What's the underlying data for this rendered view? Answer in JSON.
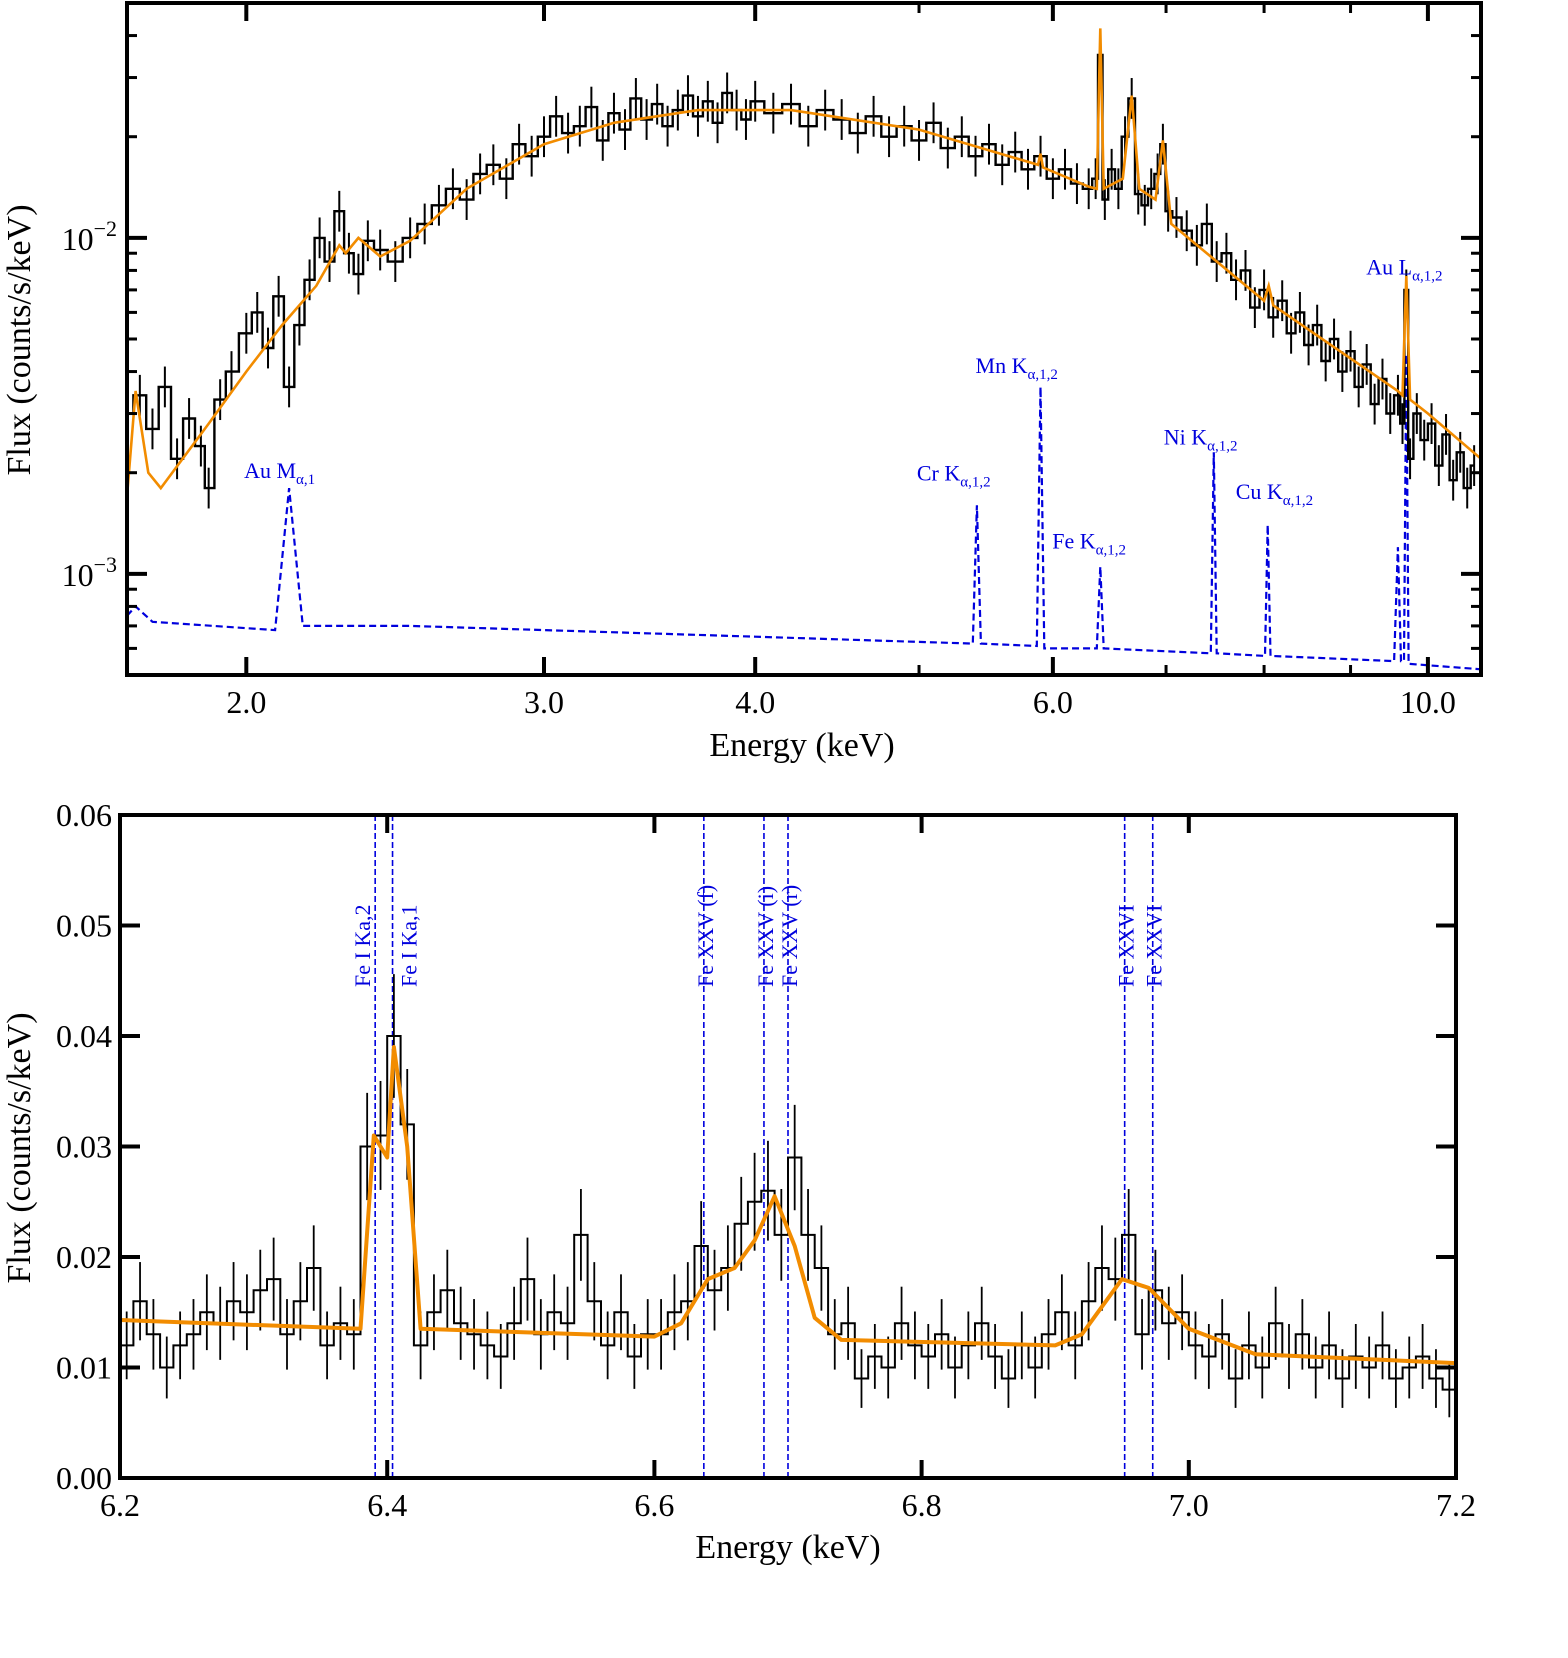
{
  "chart_data": [
    {
      "type": "line",
      "panel": "top",
      "xscale": "log",
      "yscale": "log",
      "xlabel": "Energy (keV)",
      "ylabel": "Flux (counts/s/keV)",
      "xlim": [
        1.7,
        10.75
      ],
      "ylim": [
        0.0005,
        0.05
      ],
      "xticks": [
        2.0,
        3.0,
        4.0,
        6.0,
        10.0
      ],
      "xtick_labels": [
        "2.0",
        "3.0",
        "4.0",
        "6.0",
        "10.0"
      ],
      "yticks": [
        0.001,
        0.01
      ],
      "ytick_labels": [
        {
          "base": "10",
          "exp": "−3"
        },
        {
          "base": "10",
          "exp": "−2"
        }
      ],
      "colors": {
        "data": "#000000",
        "model": "#f28c00",
        "background": "#0000dd"
      },
      "series": [
        {
          "name": "data",
          "style": "step",
          "x": [
            1.7,
            1.73,
            1.76,
            1.79,
            1.82,
            1.85,
            1.88,
            1.9,
            1.93,
            1.96,
            2.0,
            2.03,
            2.06,
            2.09,
            2.12,
            2.15,
            2.18,
            2.21,
            2.24,
            2.27,
            2.3,
            2.33,
            2.36,
            2.4,
            2.45,
            2.5,
            2.55,
            2.6,
            2.65,
            2.7,
            2.75,
            2.8,
            2.85,
            2.9,
            2.95,
            3.0,
            3.05,
            3.1,
            3.15,
            3.2,
            3.25,
            3.3,
            3.35,
            3.4,
            3.45,
            3.5,
            3.55,
            3.6,
            3.65,
            3.7,
            3.75,
            3.8,
            3.85,
            3.9,
            3.95,
            4.0,
            4.1,
            4.2,
            4.3,
            4.4,
            4.5,
            4.6,
            4.7,
            4.8,
            4.9,
            5.0,
            5.1,
            5.2,
            5.3,
            5.4,
            5.5,
            5.6,
            5.7,
            5.8,
            5.9,
            6.0,
            6.1,
            6.2,
            6.3,
            6.36,
            6.4,
            6.44,
            6.5,
            6.56,
            6.62,
            6.68,
            6.74,
            6.8,
            6.86,
            6.92,
            6.97,
            7.02,
            7.1,
            7.2,
            7.3,
            7.4,
            7.5,
            7.6,
            7.7,
            7.8,
            7.9,
            8.0,
            8.1,
            8.2,
            8.3,
            8.4,
            8.5,
            8.6,
            8.7,
            8.8,
            8.9,
            9.0,
            9.1,
            9.2,
            9.3,
            9.4,
            9.5,
            9.6,
            9.66,
            9.71,
            9.76,
            9.85,
            9.95,
            10.05,
            10.15,
            10.25,
            10.35,
            10.45,
            10.55,
            10.65
          ],
          "y": [
            0.003,
            0.0034,
            0.0027,
            0.0036,
            0.0022,
            0.0029,
            0.0024,
            0.0018,
            0.0033,
            0.004,
            0.0052,
            0.006,
            0.0047,
            0.0067,
            0.0036,
            0.0055,
            0.0075,
            0.01,
            0.0085,
            0.012,
            0.009,
            0.0078,
            0.0098,
            0.0092,
            0.0085,
            0.01,
            0.011,
            0.0125,
            0.014,
            0.013,
            0.0155,
            0.0165,
            0.015,
            0.019,
            0.0175,
            0.02,
            0.023,
            0.0205,
            0.0215,
            0.0245,
            0.0195,
            0.0235,
            0.021,
            0.026,
            0.0225,
            0.025,
            0.0215,
            0.024,
            0.0265,
            0.023,
            0.0255,
            0.022,
            0.027,
            0.024,
            0.0225,
            0.0255,
            0.0235,
            0.025,
            0.0215,
            0.024,
            0.0225,
            0.0205,
            0.023,
            0.02,
            0.0215,
            0.0195,
            0.022,
            0.0185,
            0.02,
            0.0175,
            0.019,
            0.0165,
            0.018,
            0.016,
            0.0175,
            0.015,
            0.016,
            0.0145,
            0.014,
            0.015,
            0.035,
            0.013,
            0.016,
            0.014,
            0.02,
            0.026,
            0.0135,
            0.0125,
            0.014,
            0.0155,
            0.019,
            0.012,
            0.0115,
            0.0105,
            0.0095,
            0.011,
            0.0085,
            0.009,
            0.0075,
            0.008,
            0.0062,
            0.007,
            0.0058,
            0.0065,
            0.0052,
            0.006,
            0.0048,
            0.0055,
            0.0043,
            0.005,
            0.004,
            0.0046,
            0.0036,
            0.0042,
            0.0032,
            0.0038,
            0.003,
            0.0034,
            0.0028,
            0.007,
            0.0022,
            0.003,
            0.0025,
            0.0028,
            0.0021,
            0.0026,
            0.0019,
            0.0023,
            0.0018,
            0.0021
          ]
        },
        {
          "name": "model",
          "style": "line",
          "x": [
            1.7,
            1.72,
            1.75,
            1.78,
            1.9,
            2.0,
            2.1,
            2.2,
            2.27,
            2.29,
            2.33,
            2.4,
            2.5,
            2.7,
            3.0,
            3.3,
            3.7,
            4.2,
            5.0,
            5.88,
            5.9,
            5.92,
            6.3,
            6.37,
            6.4,
            6.43,
            6.6,
            6.68,
            6.75,
            6.9,
            6.97,
            7.05,
            8.0,
            8.05,
            8.1,
            9.6,
            9.66,
            9.71,
            9.76,
            10.0,
            10.75
          ],
          "y": [
            0.0017,
            0.0035,
            0.002,
            0.0018,
            0.0028,
            0.004,
            0.0055,
            0.0072,
            0.0095,
            0.009,
            0.01,
            0.0088,
            0.0098,
            0.014,
            0.019,
            0.022,
            0.024,
            0.024,
            0.021,
            0.0165,
            0.0178,
            0.0162,
            0.0142,
            0.014,
            0.042,
            0.014,
            0.015,
            0.0265,
            0.014,
            0.013,
            0.0195,
            0.011,
            0.0065,
            0.0072,
            0.0063,
            0.0035,
            0.0034,
            0.0077,
            0.0033,
            0.003,
            0.0022
          ]
        },
        {
          "name": "background",
          "style": "dashed",
          "x": [
            1.7,
            1.72,
            1.76,
            2.08,
            2.12,
            2.16,
            2.5,
            4.0,
            5.38,
            5.41,
            5.44,
            5.87,
            5.9,
            5.93,
            6.37,
            6.4,
            6.43,
            7.44,
            7.47,
            7.5,
            8.01,
            8.04,
            8.07,
            9.55,
            9.6,
            9.64,
            9.68,
            9.71,
            9.74,
            10.75
          ],
          "y": [
            0.00075,
            0.0008,
            0.00072,
            0.00068,
            0.0018,
            0.0007,
            0.0007,
            0.00065,
            0.00062,
            0.0016,
            0.00062,
            0.00061,
            0.0036,
            0.0006,
            0.0006,
            0.00105,
            0.0006,
            0.00058,
            0.0023,
            0.00058,
            0.00057,
            0.0014,
            0.00057,
            0.00055,
            0.0012,
            0.00055,
            0.00055,
            0.0045,
            0.00054,
            0.00052
          ]
        }
      ],
      "annotations": [
        {
          "element": "Au M",
          "sub": "α,1",
          "energy": 2.12,
          "peak": 0.0018
        },
        {
          "element": "Cr K",
          "sub": "α,1,2",
          "energy": 5.41,
          "peak": 0.0016
        },
        {
          "element": "Mn K",
          "sub": "α,1,2",
          "energy": 5.9,
          "peak": 0.0036
        },
        {
          "element": "Fe K",
          "sub": "α,1,2",
          "energy": 6.4,
          "peak": 0.00105
        },
        {
          "element": "Ni K",
          "sub": "α,1,2",
          "energy": 7.47,
          "peak": 0.0023
        },
        {
          "element": "Cu K",
          "sub": "α,1,2",
          "energy": 8.04,
          "peak": 0.0014
        },
        {
          "element": "Au L",
          "sub": "α,1,2",
          "energy": 9.71,
          "peak": 0.0045
        }
      ]
    },
    {
      "type": "line",
      "panel": "bottom",
      "xlabel": "Energy (keV)",
      "ylabel": "Flux (counts/s/keV)",
      "xlim": [
        6.2,
        7.2
      ],
      "ylim": [
        0.0,
        0.06
      ],
      "xticks": [
        6.2,
        6.4,
        6.6,
        6.8,
        7.0,
        7.2
      ],
      "xtick_labels": [
        "6.2",
        "6.4",
        "6.6",
        "6.8",
        "7.0",
        "7.2"
      ],
      "yticks": [
        0.0,
        0.01,
        0.02,
        0.03,
        0.04,
        0.05,
        0.06
      ],
      "ytick_labels": [
        "0.00",
        "0.01",
        "0.02",
        "0.03",
        "0.04",
        "0.05",
        "0.06"
      ],
      "colors": {
        "data": "#000000",
        "model": "#f28c00",
        "lines": "#0000dd"
      },
      "series": [
        {
          "name": "data",
          "style": "step",
          "bin_start": 6.2,
          "bin_width": 0.01,
          "y": [
            0.012,
            0.016,
            0.013,
            0.01,
            0.012,
            0.013,
            0.015,
            0.014,
            0.016,
            0.015,
            0.017,
            0.018,
            0.013,
            0.016,
            0.019,
            0.012,
            0.014,
            0.013,
            0.03,
            0.031,
            0.04,
            0.032,
            0.012,
            0.015,
            0.017,
            0.014,
            0.013,
            0.012,
            0.011,
            0.014,
            0.018,
            0.013,
            0.015,
            0.014,
            0.022,
            0.016,
            0.012,
            0.015,
            0.011,
            0.013,
            0.013,
            0.015,
            0.016,
            0.021,
            0.017,
            0.019,
            0.023,
            0.025,
            0.026,
            0.022,
            0.029,
            0.022,
            0.019,
            0.013,
            0.014,
            0.009,
            0.011,
            0.01,
            0.014,
            0.012,
            0.011,
            0.013,
            0.01,
            0.012,
            0.014,
            0.011,
            0.009,
            0.012,
            0.01,
            0.013,
            0.015,
            0.012,
            0.016,
            0.019,
            0.018,
            0.022,
            0.013,
            0.017,
            0.014,
            0.015,
            0.012,
            0.011,
            0.013,
            0.009,
            0.012,
            0.01,
            0.014,
            0.011,
            0.013,
            0.01,
            0.012,
            0.009,
            0.011,
            0.01,
            0.012,
            0.009,
            0.01,
            0.011,
            0.009,
            0.008
          ]
        },
        {
          "name": "model",
          "style": "line",
          "x": [
            6.2,
            6.38,
            6.39,
            6.4,
            6.405,
            6.415,
            6.425,
            6.6,
            6.62,
            6.64,
            6.66,
            6.675,
            6.69,
            6.705,
            6.72,
            6.74,
            6.9,
            6.92,
            6.95,
            6.97,
            7.0,
            7.05,
            7.2
          ],
          "y": [
            0.0143,
            0.0135,
            0.031,
            0.029,
            0.039,
            0.03,
            0.0135,
            0.0128,
            0.014,
            0.018,
            0.019,
            0.0215,
            0.0255,
            0.021,
            0.0145,
            0.0125,
            0.012,
            0.013,
            0.018,
            0.0172,
            0.0135,
            0.0112,
            0.0104
          ]
        }
      ],
      "line_markers": [
        {
          "label": "Fe I Ka,2",
          "energy": 6.391
        },
        {
          "label": "Fe I Ka,1",
          "energy": 6.404
        },
        {
          "label": "Fe XXV (f)",
          "energy": 6.637
        },
        {
          "label": "Fe XXV (i)",
          "energy": 6.682
        },
        {
          "label": "Fe XXV (r)",
          "energy": 6.7
        },
        {
          "label": "Fe XXVI",
          "energy": 6.952
        },
        {
          "label": "Fe XXVI",
          "energy": 6.973
        }
      ]
    }
  ]
}
